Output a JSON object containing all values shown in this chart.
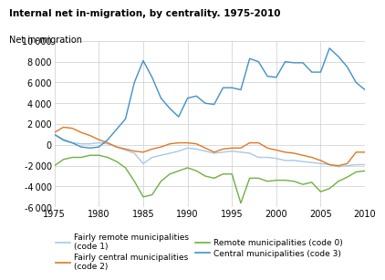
{
  "title": "Internal net in-migration, by centrality. 1975-2010",
  "ylabel": "Net in-migration",
  "xlim": [
    1975,
    2010
  ],
  "ylim": [
    -6000,
    10000
  ],
  "yticks": [
    -6000,
    -4000,
    -2000,
    0,
    2000,
    4000,
    6000,
    8000,
    10000
  ],
  "xticks": [
    1975,
    1980,
    1985,
    1990,
    1995,
    2000,
    2005,
    2010
  ],
  "years": [
    1975,
    1976,
    1977,
    1978,
    1979,
    1980,
    1981,
    1982,
    1983,
    1984,
    1985,
    1986,
    1987,
    1988,
    1989,
    1990,
    1991,
    1992,
    1993,
    1994,
    1995,
    1996,
    1997,
    1998,
    1999,
    2000,
    2001,
    2002,
    2003,
    2004,
    2005,
    2006,
    2007,
    2008,
    2009,
    2010
  ],
  "code1": [
    1000,
    400,
    200,
    100,
    100,
    200,
    100,
    -200,
    -500,
    -800,
    -1800,
    -1200,
    -1000,
    -800,
    -600,
    -300,
    -400,
    -600,
    -800,
    -700,
    -600,
    -700,
    -800,
    -1200,
    -1200,
    -1300,
    -1500,
    -1500,
    -1600,
    -1700,
    -1800,
    -1900,
    -2100,
    -2000,
    -1900,
    -1900
  ],
  "code2": [
    1200,
    1700,
    1600,
    1200,
    900,
    500,
    200,
    -200,
    -400,
    -600,
    -700,
    -400,
    -200,
    100,
    200,
    200,
    100,
    -300,
    -700,
    -400,
    -300,
    -300,
    200,
    200,
    -300,
    -500,
    -700,
    -800,
    -1000,
    -1200,
    -1500,
    -1900,
    -2000,
    -1800,
    -700,
    -700
  ],
  "code0": [
    -2000,
    -1400,
    -1200,
    -1200,
    -1000,
    -1000,
    -1200,
    -1600,
    -2200,
    -3500,
    -5000,
    -4800,
    -3500,
    -2800,
    -2500,
    -2200,
    -2500,
    -3000,
    -3200,
    -2800,
    -2800,
    -5600,
    -3200,
    -3200,
    -3500,
    -3400,
    -3400,
    -3500,
    -3800,
    -3600,
    -4500,
    -4200,
    -3500,
    -3100,
    -2600,
    -2500
  ],
  "code3": [
    1000,
    500,
    200,
    -200,
    -300,
    -200,
    500,
    1500,
    2500,
    6000,
    8100,
    6500,
    4500,
    3500,
    2700,
    4500,
    4700,
    4000,
    3900,
    5500,
    5500,
    5300,
    8300,
    8000,
    6600,
    6500,
    8000,
    7900,
    7900,
    7000,
    7000,
    9300,
    8500,
    7500,
    6000,
    5300
  ],
  "color_code1": "#a8c8e8",
  "color_code2": "#e07820",
  "color_code0": "#70b040",
  "color_code3": "#4090c8",
  "legend": [
    {
      "label": "Fairly remote municipalities\n(code 1)",
      "color": "#a8c8e8"
    },
    {
      "label": "Fairly central municipalities\n(code 2)",
      "color": "#e07820"
    },
    {
      "label": "Remote municipalities (code 0)",
      "color": "#70b040"
    },
    {
      "label": "Central municipalities (code 3)",
      "color": "#4090c8"
    }
  ]
}
